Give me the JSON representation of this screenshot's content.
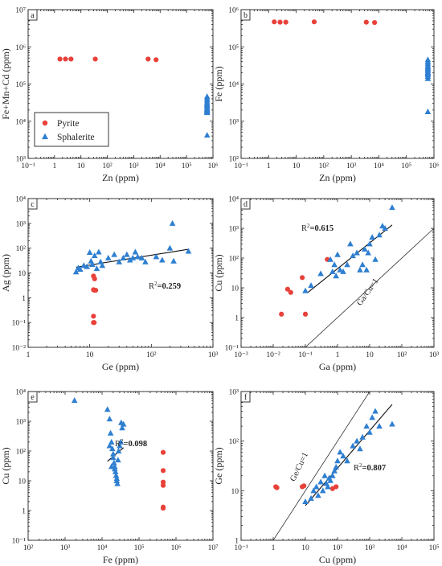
{
  "colors": {
    "pyrite": "#e8413a",
    "sphalerite": "#2f7fd1",
    "line": "#111111"
  },
  "legend": {
    "pyrite_label": "Pyrite",
    "sphalerite_label": "Sphalerite"
  },
  "chart_data": [
    {
      "panel": "a",
      "type": "scatter",
      "xlabel": "Zn (ppm)",
      "ylabel": "Fe+Mn+Cd (ppm)",
      "xscale": "log",
      "yscale": "log",
      "xlim": [
        0.1,
        1000000
      ],
      "ylim": [
        1000,
        10000000
      ],
      "xticks": [
        0.1,
        1,
        10,
        100,
        1000,
        10000,
        100000,
        1000000
      ],
      "xticklabels": [
        "10⁻¹",
        "1",
        "10",
        "10²",
        "10³",
        "10⁴",
        "10⁵",
        "10⁶"
      ],
      "yticks": [
        1000,
        10000,
        100000,
        1000000,
        10000000
      ],
      "yticklabels": [
        "10³",
        "10⁴",
        "10⁵",
        "10⁶",
        "10⁷"
      ],
      "legend_position": "bottom-left",
      "series": [
        {
          "name": "Pyrite",
          "marker": "circle",
          "x": [
            1.6,
            2.6,
            4.2,
            35,
            3500,
            7000
          ],
          "y": [
            470000,
            470000,
            470000,
            470000,
            470000,
            450000
          ]
        },
        {
          "name": "Sphalerite",
          "marker": "triangle",
          "x": [
            600000,
            600000,
            600000,
            600000,
            600000,
            600000,
            600000,
            600000,
            600000,
            600000,
            600000,
            600000,
            600000,
            600000,
            600000
          ],
          "y": [
            46000,
            41000,
            37000,
            33000,
            30000,
            28000,
            26000,
            24000,
            22000,
            21000,
            20000,
            19000,
            18000,
            17000,
            4200
          ]
        }
      ]
    },
    {
      "panel": "b",
      "type": "scatter",
      "xlabel": "Zn (ppm)",
      "ylabel": "Fe (ppm)",
      "xscale": "log",
      "yscale": "log",
      "xlim": [
        0.1,
        1000000
      ],
      "ylim": [
        100,
        1000000
      ],
      "xticks": [
        0.1,
        1,
        10,
        100,
        1000,
        10000,
        100000,
        1000000
      ],
      "xticklabels": [
        "10⁻¹",
        "1",
        "10",
        "10²",
        "10³",
        "10⁴",
        "10⁵",
        "10⁶"
      ],
      "yticks": [
        100,
        1000,
        10000,
        100000,
        1000000
      ],
      "yticklabels": [
        "10²",
        "10³",
        "10⁴",
        "10⁵",
        "10⁶"
      ],
      "series": [
        {
          "name": "Pyrite",
          "marker": "circle",
          "x": [
            1.6,
            2.6,
            4.2,
            45,
            3500,
            7000
          ],
          "y": [
            470000,
            460000,
            460000,
            470000,
            460000,
            450000
          ]
        },
        {
          "name": "Sphalerite",
          "marker": "triangle",
          "x": [
            600000,
            600000,
            600000,
            600000,
            600000,
            600000,
            600000,
            600000,
            600000,
            600000,
            600000,
            600000,
            600000,
            600000,
            600000
          ],
          "y": [
            45000,
            40000,
            36000,
            32000,
            29000,
            27000,
            25000,
            23000,
            21000,
            20000,
            19000,
            18000,
            16000,
            14000,
            1800
          ]
        }
      ]
    },
    {
      "panel": "c",
      "type": "scatter",
      "xlabel": "Ge  (ppm)",
      "ylabel": "Ag (ppm)",
      "xscale": "log",
      "yscale": "log",
      "xlim": [
        1,
        1000
      ],
      "ylim": [
        0.01,
        10000
      ],
      "xticks": [
        1,
        10,
        100,
        1000
      ],
      "xticklabels": [
        "1",
        "10",
        "10²",
        "10³"
      ],
      "yticks": [
        0.01,
        0.1,
        1,
        10,
        100,
        1000,
        10000
      ],
      "yticklabels": [
        "10⁻²",
        "10⁻¹",
        "1",
        "10",
        "10²",
        "10³",
        "10⁴"
      ],
      "annotation": {
        "prefix": "R",
        "sup": "2",
        "text": "=0.259"
      },
      "trendline": {
        "x": [
          6,
          400
        ],
        "y": [
          17,
          90
        ]
      },
      "series": [
        {
          "name": "Pyrite",
          "marker": "circle",
          "x": [
            11.5,
            12,
            11.5,
            12,
            12.5,
            11.5,
            11.5,
            11.8
          ],
          "y": [
            7.5,
            5.8,
            2.1,
            2.0,
            2.0,
            0.18,
            0.1,
            0.1
          ]
        },
        {
          "name": "Sphalerite",
          "marker": "triangle",
          "x": [
            6,
            6.5,
            7,
            8,
            9,
            10,
            10.5,
            11,
            12,
            13,
            14,
            15,
            16,
            20,
            25,
            30,
            35,
            40,
            45,
            50,
            55,
            60,
            70,
            80,
            120,
            150,
            200,
            230,
            400
          ],
          "y": [
            11,
            16,
            14,
            20,
            18,
            67,
            30,
            22,
            50,
            15,
            70,
            28,
            20,
            40,
            55,
            28,
            40,
            55,
            33,
            40,
            70,
            45,
            40,
            28,
            45,
            33,
            100,
            30,
            75
          ]
        },
        {
          "name": "",
          "marker": "triangle",
          "x": [
            220
          ],
          "y": [
            1000
          ]
        }
      ]
    },
    {
      "panel": "d",
      "type": "scatter",
      "xlabel": "Ga  (ppm)",
      "ylabel": "Cu (ppm)",
      "xscale": "log",
      "yscale": "log",
      "xlim": [
        0.001,
        1000
      ],
      "ylim": [
        0.1,
        10000
      ],
      "xticks": [
        0.001,
        0.01,
        0.1,
        1,
        10,
        100,
        1000
      ],
      "xticklabels": [
        "10⁻³",
        "10⁻²",
        "10⁻¹",
        "1",
        "10",
        "10²",
        "10³"
      ],
      "yticks": [
        0.1,
        1,
        10,
        100,
        1000,
        10000
      ],
      "yticklabels": [
        "10⁻¹",
        "1",
        "10",
        "10²",
        "10³",
        "10⁴"
      ],
      "annotation": {
        "prefix": "R",
        "sup": "2",
        "text": "=0.615"
      },
      "reference_line_label": "Ga/Cu=1",
      "reference_line": {
        "x": [
          0.1,
          1000
        ],
        "y": [
          0.1,
          1000
        ]
      },
      "trendline": {
        "x": [
          0.12,
          50
        ],
        "y": [
          7,
          1300
        ]
      },
      "series": [
        {
          "name": "Pyrite",
          "marker": "circle",
          "x": [
            0.018,
            0.028,
            0.035,
            0.08,
            0.1,
            0.48
          ],
          "y": [
            1.3,
            9,
            7,
            22,
            1.3,
            90
          ]
        },
        {
          "name": "Sphalerite",
          "marker": "triangle",
          "x": [
            0.1,
            0.15,
            0.3,
            0.6,
            0.7,
            0.8,
            0.9,
            1,
            1.2,
            1.5,
            2,
            2.5,
            3,
            4,
            5,
            6,
            7,
            8,
            9,
            10,
            12,
            15,
            20,
            25,
            30,
            50
          ],
          "y": [
            8,
            12,
            30,
            90,
            35,
            60,
            25,
            130,
            40,
            35,
            60,
            300,
            120,
            150,
            40,
            60,
            200,
            40,
            150,
            300,
            500,
            90,
            600,
            1200,
            1000,
            5000
          ]
        }
      ]
    },
    {
      "panel": "e",
      "type": "scatter",
      "xlabel": "Fe  (ppm)",
      "ylabel": "Cu (ppm)",
      "xscale": "log",
      "yscale": "log",
      "xlim": [
        100,
        10000000
      ],
      "ylim": [
        0.1,
        10000
      ],
      "xticks": [
        100,
        1000,
        10000,
        100000,
        1000000,
        10000000
      ],
      "xticklabels": [
        "10²",
        "10³",
        "10⁴",
        "10⁵",
        "10⁶",
        "10⁷"
      ],
      "yticks": [
        0.1,
        1,
        10,
        100,
        1000,
        10000
      ],
      "yticklabels": [
        "10⁻¹",
        "1",
        "10",
        "10²",
        "10³",
        "10⁴"
      ],
      "annotation": {
        "prefix": "R",
        "sup": "2",
        "text": "=0.098"
      },
      "trendline": {
        "x": [
          14000,
          38000
        ],
        "y": [
          45,
          130
        ]
      },
      "series": [
        {
          "name": "Pyrite",
          "marker": "circle",
          "x": [
            450000,
            450000,
            450000,
            450000,
            450000,
            450000
          ],
          "y": [
            90,
            22,
            9,
            7,
            1.3,
            1.2
          ]
        },
        {
          "name": "Sphalerite",
          "marker": "triangle",
          "x": [
            1800,
            14000,
            16000,
            17000,
            18000,
            19000,
            20000,
            20000,
            21000,
            22000,
            22000,
            23000,
            24000,
            25000,
            25000,
            26000,
            27000,
            28000,
            30000,
            32000,
            33000,
            35000,
            38000,
            16000,
            18000
          ],
          "y": [
            5000,
            2500,
            1200,
            400,
            200,
            120,
            80,
            60,
            40,
            30,
            25,
            20,
            15,
            12,
            10,
            8,
            50,
            100,
            150,
            200,
            900,
            600,
            800,
            150,
            30
          ]
        }
      ]
    },
    {
      "panel": "f",
      "type": "scatter",
      "xlabel": "Cu  (ppm)",
      "ylabel": "Ge (ppm)",
      "xscale": "log",
      "yscale": "log",
      "xlim": [
        0.1,
        100000
      ],
      "ylim": [
        1,
        1000
      ],
      "xticks": [
        0.1,
        1,
        10,
        100,
        1000,
        10000,
        100000
      ],
      "xticklabels": [
        "10⁻¹",
        "1",
        "10",
        "10²",
        "10³",
        "10⁴",
        "10⁵"
      ],
      "yticks": [
        1,
        10,
        100,
        1000
      ],
      "yticklabels": [
        "1",
        "10",
        "10²",
        "10³"
      ],
      "annotation": {
        "prefix": "R",
        "sup": "2",
        "text": "=0.807"
      },
      "reference_line_label": "Ge/Cu=1",
      "reference_line": {
        "x": [
          1,
          1000
        ],
        "y": [
          1,
          1000
        ]
      },
      "trendline": {
        "x": [
          10,
          5000
        ],
        "y": [
          5,
          550
        ]
      },
      "series": [
        {
          "name": "Pyrite",
          "marker": "circle",
          "x": [
            1.2,
            1.3,
            8,
            9,
            70,
            90
          ],
          "y": [
            12,
            11.5,
            12,
            12.5,
            11,
            12
          ]
        },
        {
          "name": "Sphalerite",
          "marker": "triangle",
          "x": [
            10,
            15,
            18,
            22,
            25,
            30,
            35,
            40,
            45,
            50,
            55,
            60,
            70,
            80,
            90,
            100,
            120,
            150,
            200,
            300,
            400,
            500,
            600,
            800,
            1000,
            1200,
            1500,
            2000,
            5000
          ],
          "y": [
            6,
            7,
            10,
            12,
            8,
            15,
            10,
            20,
            14,
            12,
            18,
            16,
            20,
            25,
            30,
            40,
            60,
            50,
            40,
            80,
            100,
            70,
            120,
            200,
            150,
            300,
            400,
            200,
            220
          ]
        }
      ]
    }
  ]
}
